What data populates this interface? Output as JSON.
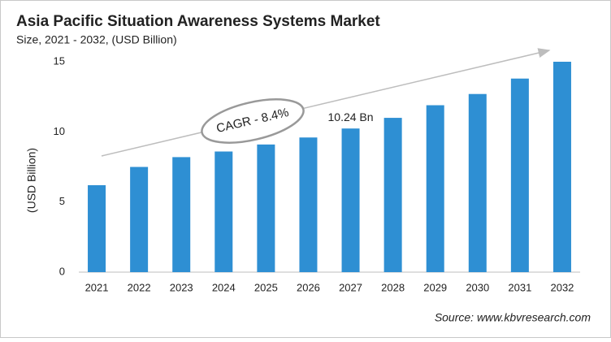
{
  "chart_data": {
    "type": "bar",
    "title": "Asia Pacific Situation Awareness Systems Market",
    "subtitle": "Size, 2021 - 2032, (USD Billion)",
    "y_label": "(USD Billion)",
    "categories": [
      "2021",
      "2022",
      "2023",
      "2024",
      "2025",
      "2026",
      "2027",
      "2028",
      "2029",
      "2030",
      "2031",
      "2032"
    ],
    "values": [
      6.2,
      7.5,
      8.2,
      8.6,
      9.1,
      9.6,
      10.24,
      11.0,
      11.9,
      12.7,
      13.8,
      15.0
    ],
    "value_labels": [
      null,
      null,
      null,
      null,
      null,
      null,
      "10.24 Bn",
      null,
      null,
      null,
      null,
      null
    ],
    "color": "#2e8fd3",
    "ylim": [
      0,
      15
    ],
    "yticks": [
      0,
      5,
      10,
      15
    ],
    "grid": false,
    "annotation": "CAGR - 8.4%",
    "source": "Source: www.kbvresearch.com"
  }
}
